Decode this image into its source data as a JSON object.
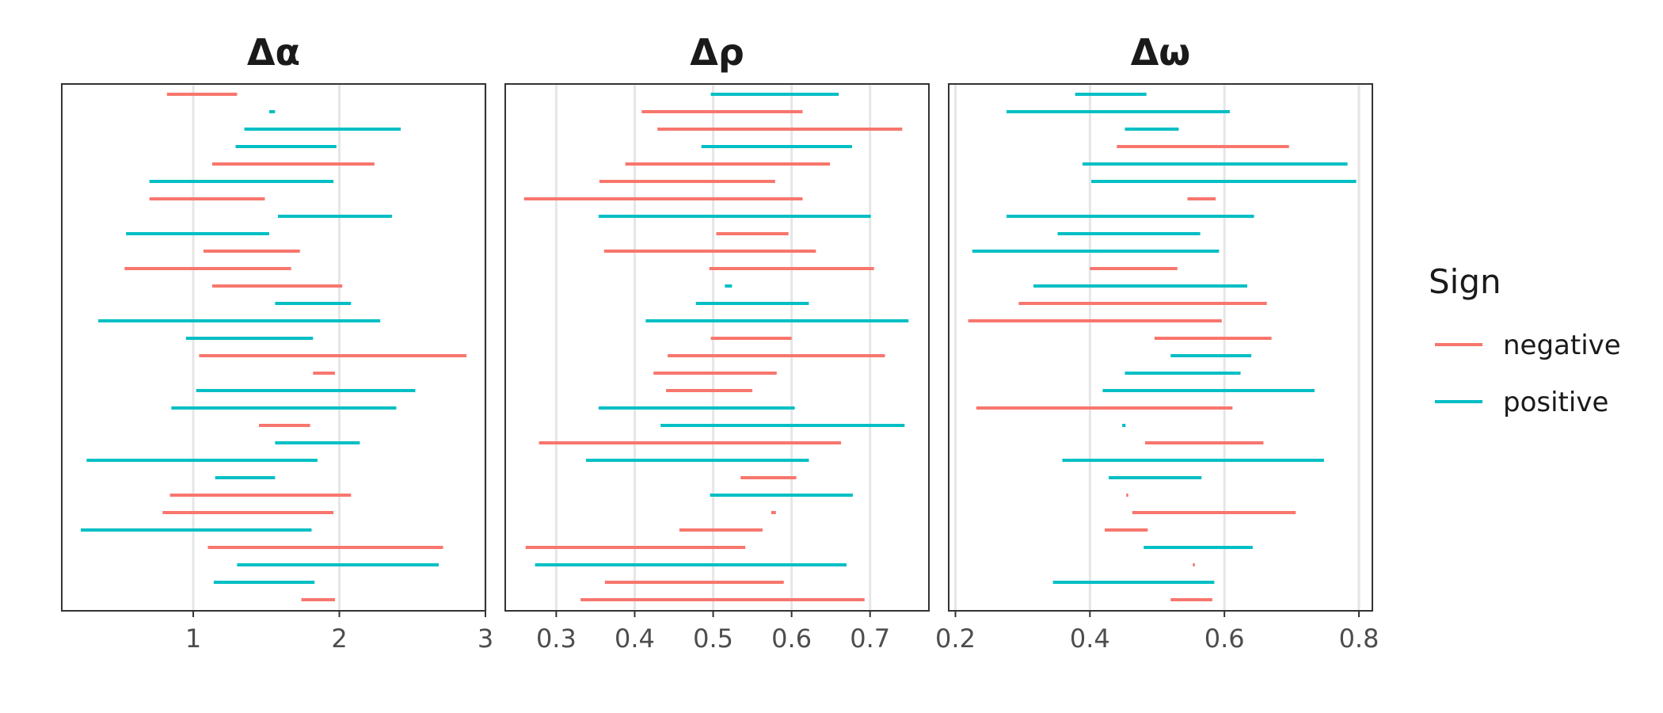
{
  "chart_data": {
    "type": "interval",
    "legend": {
      "title": "Sign",
      "placement": "right",
      "entries": [
        {
          "label": "negative",
          "color": "#F8766D"
        },
        {
          "label": "positive",
          "color": "#00BFC4"
        }
      ]
    },
    "grid": true,
    "panels": [
      {
        "title": "Δα",
        "xlim": [
          0.1,
          3.0
        ],
        "ticks": [
          1,
          2,
          3
        ],
        "tick_labels": [
          "1",
          "2",
          "3"
        ],
        "segments": [
          {
            "low": 0.82,
            "high": 1.3,
            "sign": "negative"
          },
          {
            "low": 1.52,
            "high": 1.56,
            "sign": "positive"
          },
          {
            "low": 1.35,
            "high": 2.42,
            "sign": "positive"
          },
          {
            "low": 1.29,
            "high": 1.98,
            "sign": "positive"
          },
          {
            "low": 1.13,
            "high": 2.24,
            "sign": "negative"
          },
          {
            "low": 0.7,
            "high": 1.96,
            "sign": "positive"
          },
          {
            "low": 0.7,
            "high": 1.49,
            "sign": "negative"
          },
          {
            "low": 1.58,
            "high": 2.36,
            "sign": "positive"
          },
          {
            "low": 0.54,
            "high": 1.52,
            "sign": "positive"
          },
          {
            "low": 1.07,
            "high": 1.73,
            "sign": "negative"
          },
          {
            "low": 0.53,
            "high": 1.67,
            "sign": "negative"
          },
          {
            "low": 1.13,
            "high": 2.02,
            "sign": "negative"
          },
          {
            "low": 1.56,
            "high": 2.08,
            "sign": "positive"
          },
          {
            "low": 0.35,
            "high": 2.28,
            "sign": "positive"
          },
          {
            "low": 0.95,
            "high": 1.82,
            "sign": "positive"
          },
          {
            "low": 1.04,
            "high": 2.87,
            "sign": "negative"
          },
          {
            "low": 1.82,
            "high": 1.97,
            "sign": "negative"
          },
          {
            "low": 1.02,
            "high": 2.52,
            "sign": "positive"
          },
          {
            "low": 0.85,
            "high": 2.39,
            "sign": "positive"
          },
          {
            "low": 1.45,
            "high": 1.8,
            "sign": "negative"
          },
          {
            "low": 1.56,
            "high": 2.14,
            "sign": "positive"
          },
          {
            "low": 0.27,
            "high": 1.85,
            "sign": "positive"
          },
          {
            "low": 1.15,
            "high": 1.56,
            "sign": "positive"
          },
          {
            "low": 0.84,
            "high": 2.08,
            "sign": "negative"
          },
          {
            "low": 0.79,
            "high": 1.96,
            "sign": "negative"
          },
          {
            "low": 0.23,
            "high": 1.81,
            "sign": "positive"
          },
          {
            "low": 1.1,
            "high": 2.71,
            "sign": "negative"
          },
          {
            "low": 1.3,
            "high": 2.68,
            "sign": "positive"
          },
          {
            "low": 1.14,
            "high": 1.83,
            "sign": "positive"
          },
          {
            "low": 1.74,
            "high": 1.97,
            "sign": "negative"
          }
        ]
      },
      {
        "title": "Δρ",
        "xlim": [
          0.235,
          0.775
        ],
        "ticks": [
          0.3,
          0.4,
          0.5,
          0.6,
          0.7
        ],
        "tick_labels": [
          "0.3",
          "0.4",
          "0.5",
          "0.6",
          "0.7"
        ],
        "segments": [
          {
            "low": 0.497,
            "high": 0.66,
            "sign": "positive"
          },
          {
            "low": 0.409,
            "high": 0.614,
            "sign": "negative"
          },
          {
            "low": 0.429,
            "high": 0.741,
            "sign": "negative"
          },
          {
            "low": 0.485,
            "high": 0.677,
            "sign": "positive"
          },
          {
            "low": 0.388,
            "high": 0.649,
            "sign": "negative"
          },
          {
            "low": 0.355,
            "high": 0.579,
            "sign": "negative"
          },
          {
            "low": 0.259,
            "high": 0.614,
            "sign": "negative"
          },
          {
            "low": 0.354,
            "high": 0.701,
            "sign": "positive"
          },
          {
            "low": 0.504,
            "high": 0.596,
            "sign": "negative"
          },
          {
            "low": 0.361,
            "high": 0.631,
            "sign": "negative"
          },
          {
            "low": 0.495,
            "high": 0.705,
            "sign": "negative"
          },
          {
            "low": 0.515,
            "high": 0.524,
            "sign": "positive"
          },
          {
            "low": 0.478,
            "high": 0.622,
            "sign": "positive"
          },
          {
            "low": 0.414,
            "high": 0.749,
            "sign": "positive"
          },
          {
            "low": 0.497,
            "high": 0.6,
            "sign": "negative"
          },
          {
            "low": 0.442,
            "high": 0.719,
            "sign": "negative"
          },
          {
            "low": 0.424,
            "high": 0.581,
            "sign": "negative"
          },
          {
            "low": 0.44,
            "high": 0.55,
            "sign": "negative"
          },
          {
            "low": 0.354,
            "high": 0.604,
            "sign": "positive"
          },
          {
            "low": 0.433,
            "high": 0.744,
            "sign": "positive"
          },
          {
            "low": 0.278,
            "high": 0.663,
            "sign": "negative"
          },
          {
            "low": 0.338,
            "high": 0.622,
            "sign": "positive"
          },
          {
            "low": 0.535,
            "high": 0.606,
            "sign": "negative"
          },
          {
            "low": 0.496,
            "high": 0.678,
            "sign": "positive"
          },
          {
            "low": 0.574,
            "high": 0.58,
            "sign": "negative"
          },
          {
            "low": 0.457,
            "high": 0.563,
            "sign": "negative"
          },
          {
            "low": 0.261,
            "high": 0.541,
            "sign": "negative"
          },
          {
            "low": 0.273,
            "high": 0.67,
            "sign": "positive"
          },
          {
            "low": 0.362,
            "high": 0.59,
            "sign": "negative"
          },
          {
            "low": 0.331,
            "high": 0.693,
            "sign": "negative"
          }
        ]
      },
      {
        "title": "Δω",
        "xlim": [
          0.19,
          0.82
        ],
        "ticks": [
          0.2,
          0.4,
          0.6,
          0.8
        ],
        "tick_labels": [
          "0.2",
          "0.4",
          "0.6",
          "0.8"
        ],
        "segments": [
          {
            "low": 0.378,
            "high": 0.484,
            "sign": "positive"
          },
          {
            "low": 0.276,
            "high": 0.608,
            "sign": "positive"
          },
          {
            "low": 0.452,
            "high": 0.532,
            "sign": "positive"
          },
          {
            "low": 0.44,
            "high": 0.696,
            "sign": "negative"
          },
          {
            "low": 0.389,
            "high": 0.783,
            "sign": "positive"
          },
          {
            "low": 0.402,
            "high": 0.796,
            "sign": "positive"
          },
          {
            "low": 0.545,
            "high": 0.587,
            "sign": "negative"
          },
          {
            "low": 0.276,
            "high": 0.644,
            "sign": "positive"
          },
          {
            "low": 0.352,
            "high": 0.564,
            "sign": "positive"
          },
          {
            "low": 0.225,
            "high": 0.592,
            "sign": "positive"
          },
          {
            "low": 0.4,
            "high": 0.53,
            "sign": "negative"
          },
          {
            "low": 0.316,
            "high": 0.634,
            "sign": "positive"
          },
          {
            "low": 0.294,
            "high": 0.663,
            "sign": "negative"
          },
          {
            "low": 0.219,
            "high": 0.596,
            "sign": "negative"
          },
          {
            "low": 0.496,
            "high": 0.67,
            "sign": "negative"
          },
          {
            "low": 0.52,
            "high": 0.64,
            "sign": "positive"
          },
          {
            "low": 0.452,
            "high": 0.624,
            "sign": "positive"
          },
          {
            "low": 0.419,
            "high": 0.734,
            "sign": "positive"
          },
          {
            "low": 0.231,
            "high": 0.612,
            "sign": "negative"
          },
          {
            "low": 0.448,
            "high": 0.453,
            "sign": "positive"
          },
          {
            "low": 0.482,
            "high": 0.658,
            "sign": "negative"
          },
          {
            "low": 0.359,
            "high": 0.748,
            "sign": "positive"
          },
          {
            "low": 0.428,
            "high": 0.566,
            "sign": "positive"
          },
          {
            "low": 0.454,
            "high": 0.457,
            "sign": "negative"
          },
          {
            "low": 0.463,
            "high": 0.706,
            "sign": "negative"
          },
          {
            "low": 0.422,
            "high": 0.486,
            "sign": "negative"
          },
          {
            "low": 0.48,
            "high": 0.642,
            "sign": "positive"
          },
          {
            "low": 0.553,
            "high": 0.556,
            "sign": "negative"
          },
          {
            "low": 0.345,
            "high": 0.585,
            "sign": "positive"
          },
          {
            "low": 0.52,
            "high": 0.582,
            "sign": "negative"
          }
        ]
      }
    ]
  }
}
